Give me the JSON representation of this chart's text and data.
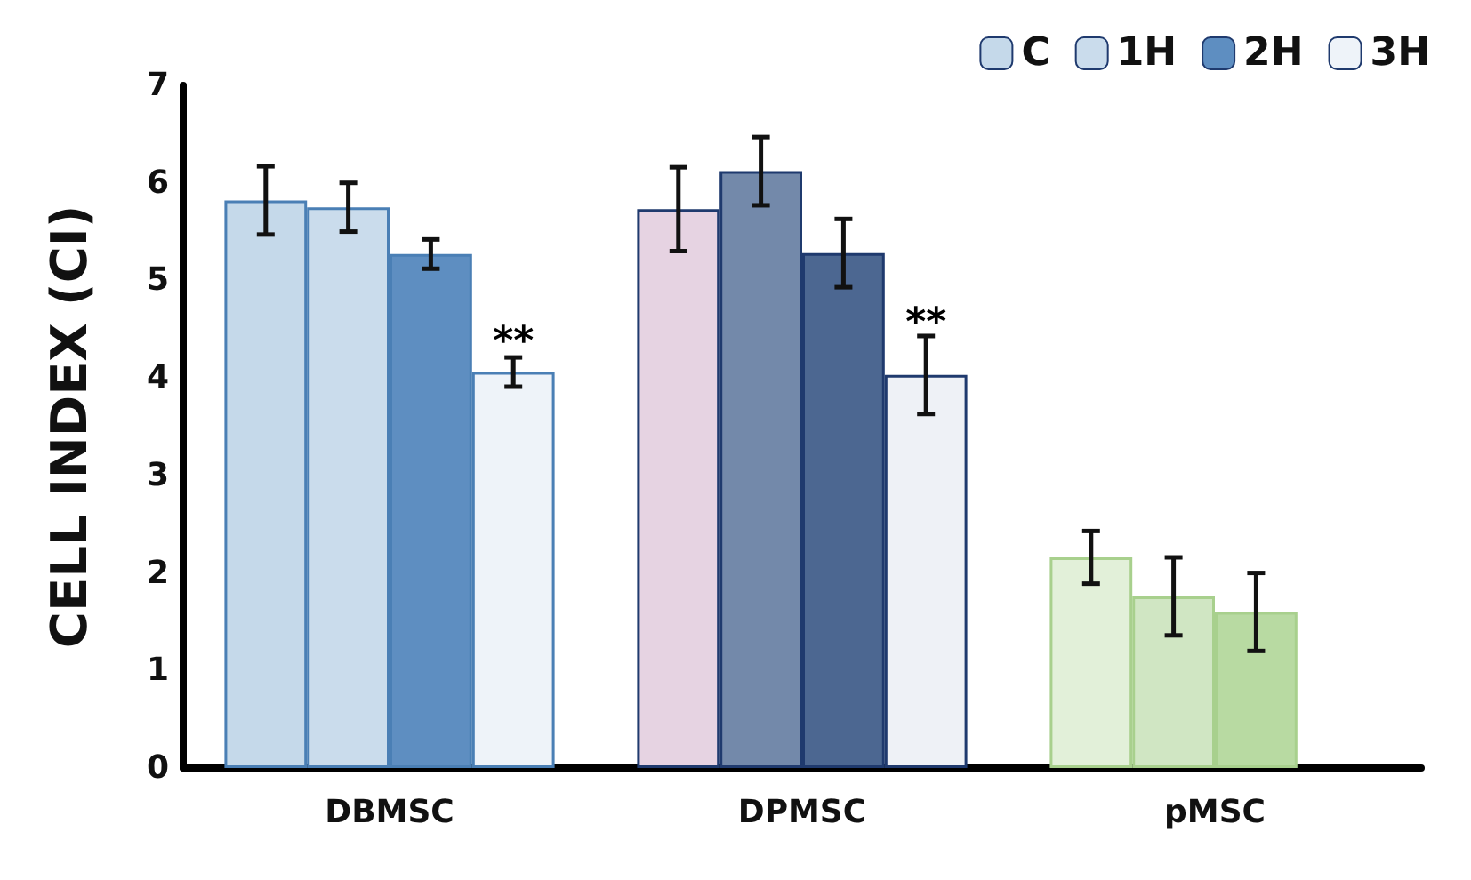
{
  "chart_data": {
    "type": "bar",
    "ylabel": "CELL INDEX (CI)",
    "categories": [
      "DBMSC",
      "DPMSC",
      "pMSC"
    ],
    "series": [
      {
        "name": "C",
        "color": "#c5d9ea",
        "colors": [
          "#c5d9ea",
          "#e6d3e2",
          "#e2f0d9"
        ],
        "values": [
          5.82,
          5.73,
          2.16
        ],
        "errors": [
          0.35,
          0.43,
          0.27
        ]
      },
      {
        "name": "1H",
        "color": "#cadcec",
        "colors": [
          "#cadcec",
          "#7389aa",
          "#d0e6c3"
        ],
        "values": [
          5.75,
          6.12,
          1.76
        ],
        "errors": [
          0.25,
          0.35,
          0.4
        ]
      },
      {
        "name": "2H",
        "color": "#5e8ec1",
        "colors": [
          "#5e8ec1",
          "#4c6791",
          "#b8daa2"
        ],
        "values": [
          5.27,
          5.28,
          1.6
        ],
        "errors": [
          0.15,
          0.35,
          0.4
        ]
      },
      {
        "name": "3H",
        "color": "#eef3f9",
        "colors": [
          "#eef3f9",
          "#eef1f6",
          null
        ],
        "values": [
          4.06,
          4.03,
          null
        ],
        "errors": [
          0.15,
          0.4,
          null
        ]
      }
    ],
    "annotations": [
      {
        "text": "**",
        "x": "DBMSC",
        "y": 4.37
      },
      {
        "text": "**",
        "x": "DPMSC",
        "y": 4.55
      }
    ],
    "ylim": [
      0,
      7
    ],
    "yticks": [
      0,
      1,
      2,
      3,
      4,
      5,
      6,
      7
    ],
    "grid": false,
    "legend": "top right"
  }
}
